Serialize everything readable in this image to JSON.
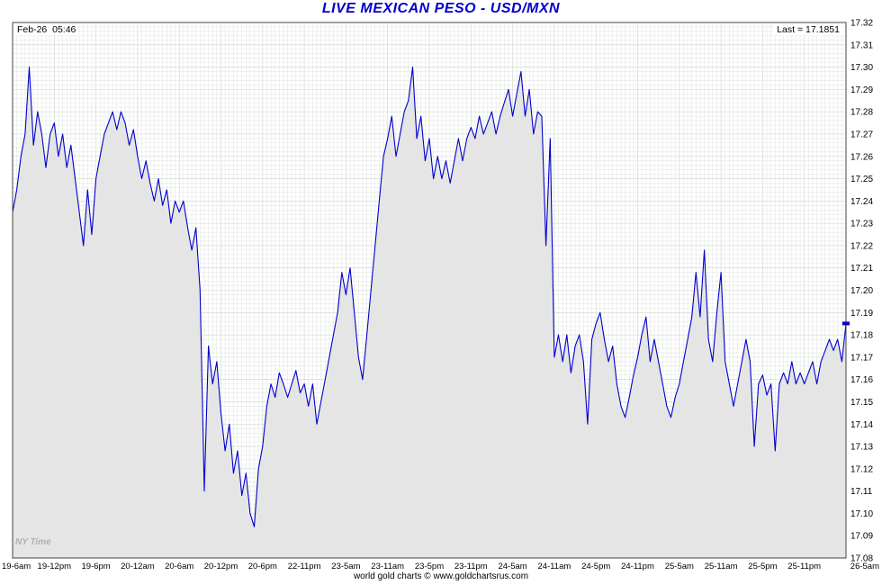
{
  "header": {
    "title": "LIVE MEXICAN PESO - USD/MXN",
    "timestamp": "Feb-26  05:46",
    "last_label": "Last = 17.1851"
  },
  "footer": {
    "credit": "world gold charts © www.goldchartsrus.com",
    "timezone_label": "NY Time"
  },
  "colors": {
    "title": "#0000cd",
    "line": "#0000cc",
    "area_fill": "#e5e5e5",
    "plot_border": "#444444",
    "grid_minor": "#e3e8e3",
    "grid_major": "#ccd4cc"
  },
  "chart_data": {
    "type": "area",
    "title": "LIVE MEXICAN PESO - USD/MXN",
    "ylabel": "USD/MXN",
    "xlabel": "NY Time",
    "last": 17.1851,
    "ylim": [
      17.08,
      17.32
    ],
    "grid": true,
    "x_tick_labels": [
      "19-6am",
      "19-12pm",
      "19-6pm",
      "20-12am",
      "20-6am",
      "20-12pm",
      "20-6pm",
      "22-11pm",
      "23-5am",
      "23-11am",
      "23-5pm",
      "23-11pm",
      "24-5am",
      "24-11am",
      "24-5pm",
      "24-11pm",
      "25-5am",
      "25-11am",
      "25-5pm",
      "25-11pm",
      "26-5am"
    ],
    "y_tick_labels": [
      "17.32",
      "17.31",
      "17.30",
      "17.29",
      "17.28",
      "17.27",
      "17.26",
      "17.25",
      "17.24",
      "17.23",
      "17.22",
      "17.21",
      "17.20",
      "17.19",
      "17.18",
      "17.17",
      "17.16",
      "17.15",
      "17.14",
      "17.13",
      "17.12",
      "17.11",
      "17.10",
      "17.09",
      "17.08"
    ],
    "values": [
      17.235,
      17.245,
      17.26,
      17.27,
      17.3,
      17.265,
      17.28,
      17.27,
      17.255,
      17.27,
      17.275,
      17.26,
      17.27,
      17.255,
      17.265,
      17.25,
      17.235,
      17.22,
      17.245,
      17.225,
      17.25,
      17.26,
      17.27,
      17.275,
      17.28,
      17.272,
      17.28,
      17.275,
      17.265,
      17.272,
      17.26,
      17.25,
      17.258,
      17.248,
      17.24,
      17.25,
      17.238,
      17.245,
      17.23,
      17.24,
      17.235,
      17.24,
      17.228,
      17.218,
      17.228,
      17.2,
      17.11,
      17.175,
      17.158,
      17.168,
      17.145,
      17.128,
      17.14,
      17.118,
      17.128,
      17.108,
      17.118,
      17.1,
      17.094,
      17.12,
      17.13,
      17.148,
      17.158,
      17.152,
      17.163,
      17.158,
      17.152,
      17.158,
      17.164,
      17.154,
      17.158,
      17.148,
      17.158,
      17.14,
      17.15,
      17.16,
      17.17,
      17.18,
      17.19,
      17.208,
      17.198,
      17.21,
      17.19,
      17.17,
      17.16,
      17.18,
      17.2,
      17.22,
      17.24,
      17.26,
      17.268,
      17.278,
      17.26,
      17.27,
      17.28,
      17.285,
      17.3,
      17.268,
      17.278,
      17.258,
      17.268,
      17.25,
      17.26,
      17.25,
      17.258,
      17.248,
      17.258,
      17.268,
      17.258,
      17.268,
      17.273,
      17.268,
      17.278,
      17.27,
      17.275,
      17.28,
      17.27,
      17.278,
      17.284,
      17.29,
      17.278,
      17.288,
      17.298,
      17.278,
      17.29,
      17.27,
      17.28,
      17.278,
      17.22,
      17.268,
      17.17,
      17.18,
      17.168,
      17.18,
      17.163,
      17.175,
      17.18,
      17.168,
      17.14,
      17.178,
      17.185,
      17.19,
      17.178,
      17.168,
      17.175,
      17.158,
      17.148,
      17.143,
      17.152,
      17.162,
      17.17,
      17.18,
      17.188,
      17.168,
      17.178,
      17.168,
      17.158,
      17.148,
      17.143,
      17.152,
      17.158,
      17.168,
      17.178,
      17.188,
      17.208,
      17.188,
      17.218,
      17.178,
      17.168,
      17.19,
      17.208,
      17.168,
      17.158,
      17.148,
      17.158,
      17.168,
      17.178,
      17.168,
      17.13,
      17.158,
      17.162,
      17.153,
      17.158,
      17.128,
      17.158,
      17.163,
      17.158,
      17.168,
      17.158,
      17.163,
      17.158,
      17.163,
      17.168,
      17.158,
      17.168,
      17.173,
      17.178,
      17.173,
      17.178,
      17.168,
      17.185
    ]
  }
}
